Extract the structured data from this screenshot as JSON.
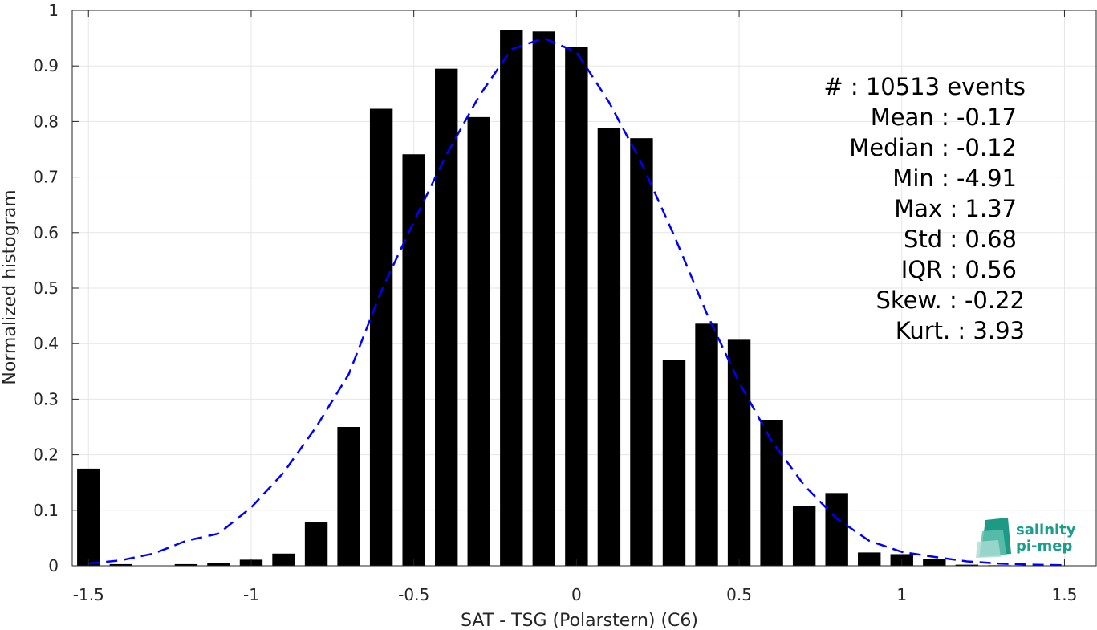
{
  "chart_data": {
    "type": "bar",
    "xlabel": "SAT - TSG (Polarstern) (C6)",
    "ylabel": "Normalized histogram",
    "xlim": [
      -1.55,
      1.6
    ],
    "ylim": [
      0,
      1
    ],
    "grid": true,
    "x_ticks": [
      -1.5,
      -1,
      -0.5,
      0,
      0.5,
      1,
      1.5
    ],
    "x_tick_labels": [
      "-1.5",
      "-1",
      "-0.5",
      "0",
      "0.5",
      "1",
      "1.5"
    ],
    "y_ticks": [
      0,
      0.1,
      0.2,
      0.3,
      0.4,
      0.5,
      0.6,
      0.7,
      0.8,
      0.9,
      1
    ],
    "y_tick_labels": [
      "0",
      "0.1",
      "0.2",
      "0.3",
      "0.4",
      "0.5",
      "0.6",
      "0.7",
      "0.8",
      "0.9",
      "1"
    ],
    "bar_color": "#000000",
    "fit_color": "#0000ff",
    "series": [
      {
        "type": "bar",
        "x": [
          -1.5,
          -1.4,
          -1.3,
          -1.2,
          -1.1,
          -1.0,
          -0.9,
          -0.8,
          -0.7,
          -0.6,
          -0.5,
          -0.4,
          -0.3,
          -0.2,
          -0.1,
          0.0,
          0.1,
          0.2,
          0.3,
          0.4,
          0.5,
          0.6,
          0.7,
          0.8,
          0.9,
          1.0,
          1.1,
          1.2,
          1.3,
          1.4
        ],
        "values": [
          0.175,
          0.003,
          0.0,
          0.003,
          0.005,
          0.011,
          0.022,
          0.078,
          0.25,
          0.823,
          0.741,
          0.895,
          0.808,
          0.965,
          0.962,
          0.934,
          0.789,
          0.77,
          0.37,
          0.436,
          0.407,
          0.263,
          0.107,
          0.131,
          0.024,
          0.021,
          0.012,
          0.002,
          0.001,
          0.0
        ]
      },
      {
        "type": "line",
        "style": "dashed",
        "x": [
          -1.5,
          -1.4,
          -1.3,
          -1.2,
          -1.1,
          -1.0,
          -0.9,
          -0.8,
          -0.7,
          -0.6,
          -0.5,
          -0.4,
          -0.3,
          -0.2,
          -0.1,
          0.0,
          0.1,
          0.2,
          0.3,
          0.4,
          0.5,
          0.6,
          0.7,
          0.8,
          0.9,
          1.0,
          1.1,
          1.2,
          1.3,
          1.4,
          1.5
        ],
        "values": [
          0.004,
          0.01,
          0.022,
          0.045,
          0.058,
          0.105,
          0.168,
          0.25,
          0.345,
          0.495,
          0.62,
          0.74,
          0.845,
          0.93,
          0.95,
          0.925,
          0.835,
          0.725,
          0.595,
          0.455,
          0.33,
          0.225,
          0.145,
          0.085,
          0.045,
          0.025,
          0.016,
          0.008,
          0.004,
          0.002,
          0.001
        ]
      }
    ]
  },
  "stats": [
    {
      "label": "#  : 10513 events"
    },
    {
      "label": "Mean : -0.17"
    },
    {
      "label": "Median : -0.12"
    },
    {
      "label": "Min : -4.91"
    },
    {
      "label": "Max : 1.37"
    },
    {
      "label": "Std : 0.68"
    },
    {
      "label": "IQR : 0.56"
    },
    {
      "label": "Skew. : -0.22"
    },
    {
      "label": "Kurt. : 3.93"
    }
  ],
  "logo": {
    "line1": "salinity",
    "line2": "pi-mep",
    "color": "#1a9e8a"
  }
}
